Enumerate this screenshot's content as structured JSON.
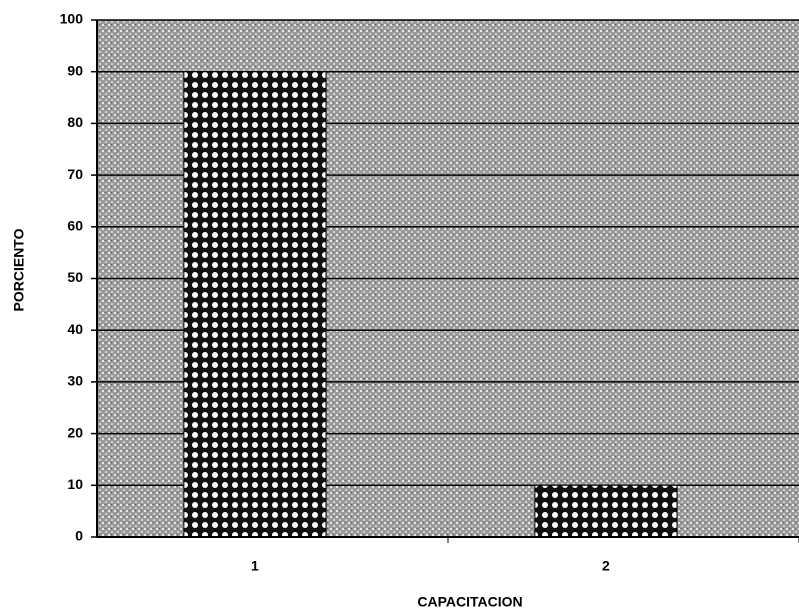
{
  "chart_data": {
    "type": "bar",
    "x_label": "CAPACITACION",
    "y_label": "PORCIENTO",
    "categories": [
      "1",
      "2"
    ],
    "values": [
      90,
      10
    ],
    "color": "#111111",
    "ylim": [
      0,
      100
    ],
    "yticks": [
      0,
      10,
      20,
      30,
      40,
      50,
      60,
      70,
      80,
      90,
      100
    ],
    "grid": true
  }
}
